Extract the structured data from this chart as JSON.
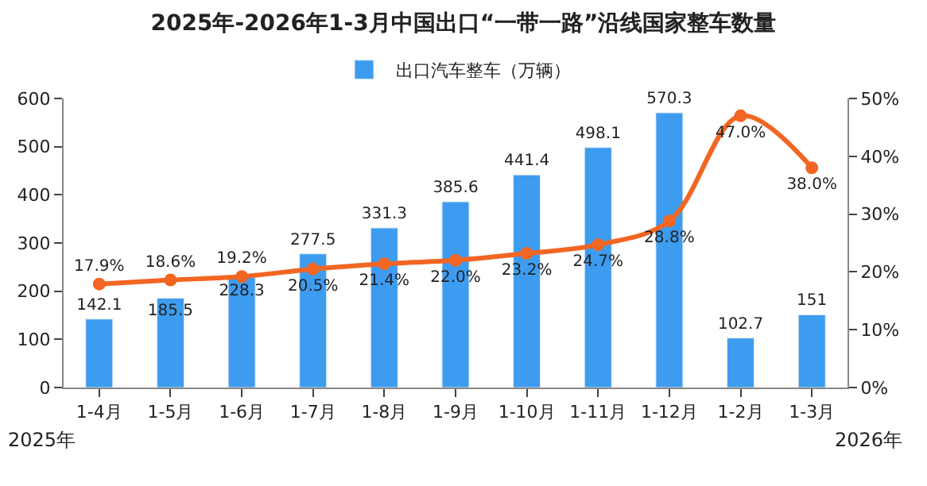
{
  "chart_data": {
    "type": "bar",
    "title": "2025年-2026年1-3月中国出口“一带一路”沿线国家整车数量",
    "categories": [
      "1-4月",
      "1-5月",
      "1-6月",
      "1-7月",
      "1-8月",
      "1-9月",
      "1-10月",
      "1-11月",
      "1-12月",
      "1-2月",
      "1-3月"
    ],
    "series": [
      {
        "name": "出口汽车整车（万辆）",
        "color": "#3d9cf0",
        "values": [
          142.1,
          185.5,
          228.3,
          277.5,
          331.3,
          385.6,
          441.4,
          498.1,
          570.3,
          102.7,
          151
        ],
        "value_labels": [
          "142.1",
          "185.5",
          "228.3",
          "277.5",
          "331.3",
          "385.6",
          "441.4",
          "498.1",
          "570.3",
          "102.7",
          "151"
        ]
      },
      {
        "type": "line",
        "axis": "y2",
        "color": "#f26522",
        "marker": "circle",
        "values": [
          17.9,
          18.6,
          19.2,
          20.5,
          21.4,
          22.0,
          23.2,
          24.7,
          28.8,
          47.0,
          38.0
        ],
        "value_labels": [
          "17.9%",
          "18.6%",
          "19.2%",
          "20.5%",
          "21.4%",
          "22.0%",
          "23.2%",
          "24.7%",
          "28.8%",
          "47.0%",
          "38.0%"
        ]
      }
    ],
    "ylim": [
      0,
      600
    ],
    "yticks": [
      0,
      100,
      200,
      300,
      400,
      500,
      600
    ],
    "y2lim": [
      0,
      50
    ],
    "y2ticks": [
      {
        "value": 0,
        "label": "0%"
      },
      {
        "value": 10,
        "label": "10%"
      },
      {
        "value": 20,
        "label": "20%"
      },
      {
        "value": 30,
        "label": "30%"
      },
      {
        "value": 40,
        "label": "40%"
      },
      {
        "value": 50,
        "label": "50%"
      }
    ],
    "legend": "top",
    "annotations": [
      "2025年",
      "2026年"
    ]
  }
}
